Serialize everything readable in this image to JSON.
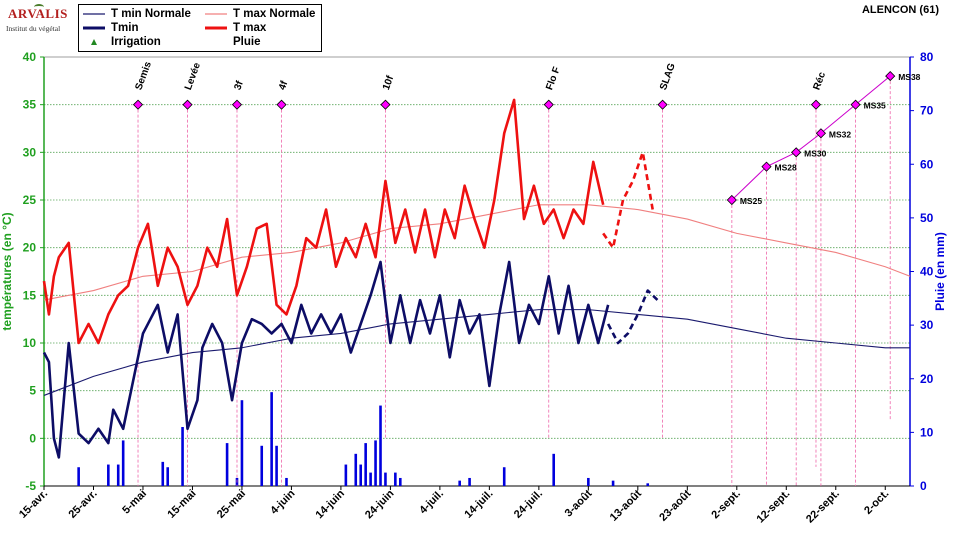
{
  "logo": {
    "brand": "ARVALIS",
    "subtitle": "Institut du végétal"
  },
  "station": "ALENCON (61)",
  "legend": [
    {
      "label": "T min Normale",
      "color": "#1a1a6e",
      "width": 1.2,
      "kind": "line"
    },
    {
      "label": "T max Normale",
      "color": "#f08080",
      "width": 1.2,
      "kind": "line"
    },
    {
      "label": "Tmin",
      "color": "#0d0d66",
      "width": 3,
      "kind": "line"
    },
    {
      "label": "T max",
      "color": "#ee1111",
      "width": 3,
      "kind": "line"
    },
    {
      "label": "Irrigation",
      "color": "#228822",
      "kind": "marker"
    },
    {
      "label": "Pluie",
      "color": "#0000dd",
      "kind": "none"
    }
  ],
  "chart_data": {
    "type": "line",
    "title": "",
    "xlabel": "",
    "ylabel": "températures (en °C)",
    "y2label": "Pluie (en mm)",
    "ylim": [
      -5,
      40
    ],
    "y2lim": [
      0,
      80
    ],
    "yticks": [
      -5,
      0,
      5,
      10,
      15,
      20,
      25,
      30,
      35,
      40
    ],
    "y2ticks": [
      0,
      10,
      20,
      30,
      40,
      50,
      60,
      70,
      80
    ],
    "xlim": [
      "2024-04-15",
      "2024-10-07"
    ],
    "xticks": [
      {
        "date": "2024-04-15",
        "label": "15-avr."
      },
      {
        "date": "2024-04-25",
        "label": "25-avr."
      },
      {
        "date": "2024-05-05",
        "label": "5-mai"
      },
      {
        "date": "2024-05-15",
        "label": "15-mai"
      },
      {
        "date": "2024-05-25",
        "label": "25-mai"
      },
      {
        "date": "2024-06-04",
        "label": "4-juin"
      },
      {
        "date": "2024-06-14",
        "label": "14-juin"
      },
      {
        "date": "2024-06-24",
        "label": "24-juin"
      },
      {
        "date": "2024-07-04",
        "label": "4-juil."
      },
      {
        "date": "2024-07-14",
        "label": "14-juil."
      },
      {
        "date": "2024-07-24",
        "label": "24-juil."
      },
      {
        "date": "2024-08-03",
        "label": "3-août"
      },
      {
        "date": "2024-08-13",
        "label": "13-août"
      },
      {
        "date": "2024-08-23",
        "label": "23-août"
      },
      {
        "date": "2024-09-02",
        "label": "2-sept."
      },
      {
        "date": "2024-09-12",
        "label": "12-sept."
      },
      {
        "date": "2024-09-22",
        "label": "22-sept."
      },
      {
        "date": "2024-10-02",
        "label": "2-oct."
      }
    ],
    "grid": "horizontal",
    "series": [
      {
        "name": "T min Normale",
        "axis": "left",
        "style": "thin",
        "color": "#1a1a6e",
        "x": [
          "2024-04-15",
          "2024-04-25",
          "2024-05-05",
          "2024-05-15",
          "2024-05-25",
          "2024-06-04",
          "2024-06-14",
          "2024-06-24",
          "2024-07-04",
          "2024-07-14",
          "2024-07-24",
          "2024-08-03",
          "2024-08-13",
          "2024-08-23",
          "2024-09-02",
          "2024-09-12",
          "2024-09-22",
          "2024-10-02",
          "2024-10-07"
        ],
        "values": [
          4.5,
          6.5,
          8,
          9,
          9.5,
          10.5,
          11,
          12,
          12.5,
          13,
          13.5,
          13.5,
          13,
          12.5,
          11.5,
          10.5,
          10,
          9.5,
          9.5
        ]
      },
      {
        "name": "T max Normale",
        "axis": "left",
        "style": "thin",
        "color": "#f08080",
        "x": [
          "2024-04-15",
          "2024-04-25",
          "2024-05-05",
          "2024-05-15",
          "2024-05-25",
          "2024-06-04",
          "2024-06-14",
          "2024-06-24",
          "2024-07-04",
          "2024-07-14",
          "2024-07-24",
          "2024-08-03",
          "2024-08-13",
          "2024-08-23",
          "2024-09-02",
          "2024-09-12",
          "2024-09-22",
          "2024-10-02",
          "2024-10-07"
        ],
        "values": [
          14.5,
          15.5,
          17,
          17.5,
          19,
          19.5,
          20.5,
          22,
          22.5,
          23.5,
          24.5,
          24.5,
          24,
          23,
          21.5,
          20.5,
          19.5,
          18,
          17
        ]
      },
      {
        "name": "Tmin",
        "axis": "left",
        "style": "thick",
        "color": "#0d0d66",
        "x": [
          "2024-04-15",
          "2024-04-16",
          "2024-04-17",
          "2024-04-18",
          "2024-04-20",
          "2024-04-22",
          "2024-04-24",
          "2024-04-26",
          "2024-04-28",
          "2024-04-29",
          "2024-05-01",
          "2024-05-03",
          "2024-05-05",
          "2024-05-06",
          "2024-05-08",
          "2024-05-10",
          "2024-05-12",
          "2024-05-14",
          "2024-05-16",
          "2024-05-17",
          "2024-05-19",
          "2024-05-21",
          "2024-05-23",
          "2024-05-25",
          "2024-05-27",
          "2024-05-29",
          "2024-05-31",
          "2024-06-02",
          "2024-06-04",
          "2024-06-06",
          "2024-06-08",
          "2024-06-10",
          "2024-06-12",
          "2024-06-14",
          "2024-06-16",
          "2024-06-18",
          "2024-06-20",
          "2024-06-22",
          "2024-06-24",
          "2024-06-26",
          "2024-06-28",
          "2024-06-30",
          "2024-07-02",
          "2024-07-04",
          "2024-07-06",
          "2024-07-08",
          "2024-07-10",
          "2024-07-12",
          "2024-07-14",
          "2024-07-16",
          "2024-07-18",
          "2024-07-20",
          "2024-07-22",
          "2024-07-24",
          "2024-07-26",
          "2024-07-28",
          "2024-07-30",
          "2024-08-01",
          "2024-08-03",
          "2024-08-05",
          "2024-08-07"
        ],
        "values": [
          9,
          8,
          0,
          -2,
          10,
          0.5,
          -0.5,
          1,
          -0.5,
          3,
          1,
          6,
          11,
          12,
          14,
          9,
          13,
          1,
          4,
          9.5,
          12,
          10,
          4,
          10,
          12.5,
          12,
          11,
          12,
          10,
          14,
          11,
          13,
          11,
          13,
          9,
          12,
          15,
          18.5,
          10,
          15,
          10,
          14.5,
          11,
          15,
          8.5,
          14.5,
          11,
          13,
          5.5,
          13,
          18.5,
          10,
          14,
          12,
          17,
          11,
          16,
          10,
          14,
          10,
          14
        ]
      },
      {
        "name": "T max",
        "axis": "left",
        "style": "thick",
        "color": "#ee1111",
        "x": [
          "2024-04-15",
          "2024-04-16",
          "2024-04-17",
          "2024-04-18",
          "2024-04-20",
          "2024-04-22",
          "2024-04-24",
          "2024-04-26",
          "2024-04-28",
          "2024-04-30",
          "2024-05-02",
          "2024-05-04",
          "2024-05-06",
          "2024-05-08",
          "2024-05-10",
          "2024-05-12",
          "2024-05-14",
          "2024-05-16",
          "2024-05-18",
          "2024-05-20",
          "2024-05-22",
          "2024-05-24",
          "2024-05-26",
          "2024-05-28",
          "2024-05-30",
          "2024-06-01",
          "2024-06-03",
          "2024-06-05",
          "2024-06-07",
          "2024-06-09",
          "2024-06-11",
          "2024-06-13",
          "2024-06-15",
          "2024-06-17",
          "2024-06-19",
          "2024-06-21",
          "2024-06-23",
          "2024-06-25",
          "2024-06-27",
          "2024-06-29",
          "2024-07-01",
          "2024-07-03",
          "2024-07-05",
          "2024-07-07",
          "2024-07-09",
          "2024-07-11",
          "2024-07-13",
          "2024-07-15",
          "2024-07-17",
          "2024-07-19",
          "2024-07-21",
          "2024-07-23",
          "2024-07-25",
          "2024-07-27",
          "2024-07-29",
          "2024-07-31",
          "2024-08-02",
          "2024-08-04",
          "2024-08-06"
        ],
        "values": [
          16.5,
          13,
          17,
          19,
          20.5,
          10,
          12,
          10,
          13,
          15,
          16,
          20,
          22.5,
          16,
          20,
          18,
          14,
          16,
          20,
          18,
          23,
          15,
          18,
          22,
          22.5,
          14,
          13,
          16,
          21,
          20,
          24,
          18,
          21,
          19,
          22.5,
          19,
          27,
          20.5,
          24,
          19.5,
          24,
          19,
          24,
          21,
          26.5,
          23,
          20,
          25,
          32,
          35.5,
          23,
          26.5,
          22.5,
          24,
          21,
          24,
          22.5,
          29,
          24.5
        ]
      },
      {
        "name": "Tmin prévision",
        "axis": "left",
        "style": "dashed",
        "color": "#0d0d66",
        "x": [
          "2024-08-07",
          "2024-08-09",
          "2024-08-11",
          "2024-08-13",
          "2024-08-15",
          "2024-08-17"
        ],
        "values": [
          12,
          10,
          11,
          13,
          15.5,
          14.5
        ]
      },
      {
        "name": "T max prévision",
        "axis": "left",
        "style": "dashed",
        "color": "#ee1111",
        "x": [
          "2024-08-06",
          "2024-08-08",
          "2024-08-10",
          "2024-08-12",
          "2024-08-14",
          "2024-08-16"
        ],
        "values": [
          21.5,
          20,
          25,
          27,
          30,
          24
        ]
      }
    ],
    "rain": {
      "axis": "right",
      "color": "#0000dd",
      "x": [
        "2024-04-22",
        "2024-04-28",
        "2024-04-30",
        "2024-05-01",
        "2024-05-09",
        "2024-05-10",
        "2024-05-13",
        "2024-05-22",
        "2024-05-24",
        "2024-05-25",
        "2024-05-29",
        "2024-05-31",
        "2024-06-01",
        "2024-06-03",
        "2024-06-15",
        "2024-06-17",
        "2024-06-18",
        "2024-06-19",
        "2024-06-20",
        "2024-06-21",
        "2024-06-22",
        "2024-06-23",
        "2024-06-25",
        "2024-06-26",
        "2024-07-08",
        "2024-07-10",
        "2024-07-17",
        "2024-07-27",
        "2024-08-03",
        "2024-08-08",
        "2024-08-15"
      ],
      "values": [
        3.5,
        4,
        4,
        8.5,
        4.5,
        3.5,
        11,
        8,
        1.5,
        16,
        7.5,
        17.5,
        7.5,
        1.5,
        4,
        6,
        4,
        8,
        2.5,
        8.5,
        15,
        2.5,
        2.5,
        1.5,
        1,
        1.5,
        3.5,
        6,
        1.5,
        1,
        0.5
      ]
    },
    "stages": [
      {
        "label": "Semis",
        "date": "2024-05-04",
        "y": 35,
        "label_top": true,
        "line_to": -5
      },
      {
        "label": "Levée",
        "date": "2024-05-14",
        "y": 35,
        "label_top": true,
        "line_to": -5
      },
      {
        "label": "3f",
        "date": "2024-05-24",
        "y": 35,
        "label_top": true,
        "line_to": -5
      },
      {
        "label": "4f",
        "date": "2024-06-02",
        "y": 35,
        "label_top": true,
        "line_to": -5
      },
      {
        "label": "10f",
        "date": "2024-06-23",
        "y": 35,
        "label_top": true,
        "line_to": 0
      },
      {
        "label": "Flo F",
        "date": "2024-07-26",
        "y": 35,
        "label_top": true,
        "line_to": 0
      },
      {
        "label": "SLAG",
        "date": "2024-08-18",
        "y": 35,
        "label_top": true,
        "line_to": 0
      },
      {
        "label": "Réc",
        "date": "2024-09-18",
        "y": 35,
        "label_top": true,
        "line_to": -3
      },
      {
        "label": "MS25",
        "date": "2024-09-01",
        "y": 25,
        "label_top": false,
        "line_to": -5
      },
      {
        "label": "MS28",
        "date": "2024-09-08",
        "y": 28.5,
        "label_top": false,
        "line_to": -5
      },
      {
        "label": "MS30",
        "date": "2024-09-14",
        "y": 30,
        "label_top": false,
        "line_to": -5
      },
      {
        "label": "MS32",
        "date": "2024-09-19",
        "y": 32,
        "label_top": false,
        "line_to": -5
      },
      {
        "label": "MS35",
        "date": "2024-09-26",
        "y": 35,
        "label_top": false,
        "line_to": -5
      },
      {
        "label": "MS38",
        "date": "2024-10-03",
        "y": 38,
        "label_top": false,
        "line_to": 2
      }
    ],
    "ms_line_color": "#cc00cc",
    "marker_color": "#ff00ff",
    "stage_line_color": "#ee66aa",
    "left_axis_color": "#20a020",
    "right_axis_color": "#0000dd"
  }
}
